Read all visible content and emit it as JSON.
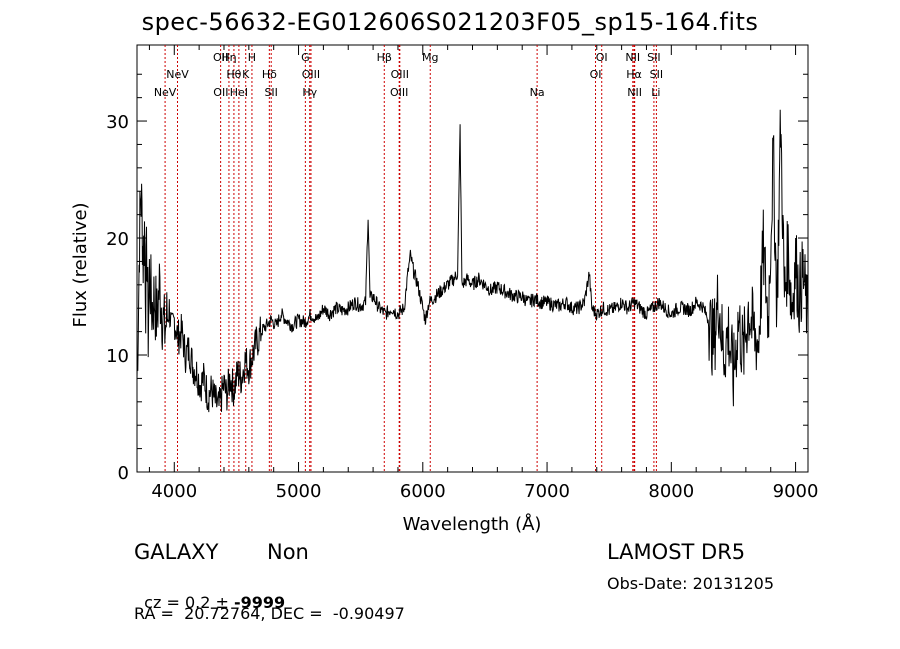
{
  "chart_data": {
    "type": "line",
    "title": "spec-56632-EG012606S021203F05_sp15-164.fits",
    "xlabel": "Wavelength (Å)",
    "ylabel": "Flux (relative)",
    "xlim": [
      3700,
      9100
    ],
    "ylim": [
      0,
      36.5
    ],
    "xticks": [
      4000,
      5000,
      6000,
      7000,
      8000,
      9000
    ],
    "yticks": [
      0,
      10,
      20,
      30
    ],
    "grid": false,
    "series_color": "#000000",
    "line_color": "#cc0000",
    "lines": [
      {
        "label": "NeV",
        "x": 3926,
        "row": 3
      },
      {
        "label": "NeV",
        "x": 4026,
        "row": 2
      },
      {
        "label": "OII",
        "x": 4373,
        "row": 1
      },
      {
        "label": "OII",
        "x": 4375,
        "row": 3
      },
      {
        "label": "Hη",
        "x": 4440,
        "row": 1
      },
      {
        "label": "Hθ",
        "x": 4480,
        "row": 2
      },
      {
        "label": "HeI",
        "x": 4520,
        "row": 3
      },
      {
        "label": "K",
        "x": 4575,
        "row": 2
      },
      {
        "label": "H",
        "x": 4625,
        "row": 1
      },
      {
        "label": "Hδ",
        "x": 4765,
        "row": 2
      },
      {
        "label": "SII",
        "x": 4780,
        "row": 3
      },
      {
        "label": "G",
        "x": 5055,
        "row": 1
      },
      {
        "label": "OIII",
        "x": 5100,
        "row": 2
      },
      {
        "label": "Hγ",
        "x": 5090,
        "row": 3
      },
      {
        "label": "Hβ",
        "x": 5690,
        "row": 1
      },
      {
        "label": "OIII",
        "x": 5815,
        "row": 2
      },
      {
        "label": "OIII",
        "x": 5810,
        "row": 3
      },
      {
        "label": "Mg",
        "x": 6060,
        "row": 1
      },
      {
        "label": "Na",
        "x": 6920,
        "row": 3
      },
      {
        "label": "OI",
        "x": 7440,
        "row": 1
      },
      {
        "label": "OI",
        "x": 7390,
        "row": 2
      },
      {
        "label": "NII",
        "x": 7690,
        "row": 1
      },
      {
        "label": "Hα",
        "x": 7700,
        "row": 2
      },
      {
        "label": "NII",
        "x": 7705,
        "row": 3
      },
      {
        "label": "SII",
        "x": 7860,
        "row": 1
      },
      {
        "label": "SII",
        "x": 7880,
        "row": 2
      },
      {
        "label": "Li",
        "x": 7875,
        "row": 3
      }
    ],
    "spectrum_points": [
      [
        3700,
        8
      ],
      [
        3710,
        13
      ],
      [
        3720,
        20
      ],
      [
        3730,
        24
      ],
      [
        3740,
        22
      ],
      [
        3750,
        18
      ],
      [
        3760,
        21
      ],
      [
        3770,
        15
      ],
      [
        3780,
        19
      ],
      [
        3790,
        12
      ],
      [
        3800,
        17
      ],
      [
        3820,
        14
      ],
      [
        3840,
        15
      ],
      [
        3860,
        13
      ],
      [
        3880,
        16
      ],
      [
        3900,
        14
      ],
      [
        3920,
        12
      ],
      [
        3940,
        13
      ],
      [
        3960,
        14
      ],
      [
        3980,
        12
      ],
      [
        4000,
        13
      ],
      [
        4030,
        11.5
      ],
      [
        4060,
        12
      ],
      [
        4090,
        10
      ],
      [
        4120,
        10.5
      ],
      [
        4150,
        9
      ],
      [
        4180,
        8.5
      ],
      [
        4210,
        7.5
      ],
      [
        4240,
        8
      ],
      [
        4270,
        6.5
      ],
      [
        4300,
        7
      ],
      [
        4330,
        6
      ],
      [
        4360,
        5.5
      ],
      [
        4380,
        6.5
      ],
      [
        4400,
        7.5
      ],
      [
        4420,
        6.5
      ],
      [
        4450,
        8
      ],
      [
        4480,
        7
      ],
      [
        4510,
        8.5
      ],
      [
        4540,
        8
      ],
      [
        4570,
        9.5
      ],
      [
        4600,
        9
      ],
      [
        4630,
        10
      ],
      [
        4660,
        11
      ],
      [
        4700,
        12
      ],
      [
        4740,
        12.5
      ],
      [
        4780,
        13
      ],
      [
        4820,
        12.5
      ],
      [
        4860,
        13.5
      ],
      [
        4900,
        13
      ],
      [
        4950,
        12.5
      ],
      [
        5000,
        13
      ],
      [
        5050,
        12.8
      ],
      [
        5100,
        13.5
      ],
      [
        5150,
        13
      ],
      [
        5200,
        14
      ],
      [
        5250,
        13.5
      ],
      [
        5300,
        14
      ],
      [
        5350,
        13.8
      ],
      [
        5400,
        14
      ],
      [
        5450,
        14.5
      ],
      [
        5500,
        14.2
      ],
      [
        5540,
        14.5
      ],
      [
        5560,
        22
      ],
      [
        5575,
        14.8
      ],
      [
        5600,
        15
      ],
      [
        5650,
        14
      ],
      [
        5700,
        13.5
      ],
      [
        5750,
        14
      ],
      [
        5800,
        13.5
      ],
      [
        5850,
        14
      ],
      [
        5880,
        17
      ],
      [
        5900,
        18.5
      ],
      [
        5930,
        17
      ],
      [
        5960,
        16
      ],
      [
        6000,
        14
      ],
      [
        6020,
        13
      ],
      [
        6050,
        14.5
      ],
      [
        6100,
        15
      ],
      [
        6150,
        15.5
      ],
      [
        6200,
        16
      ],
      [
        6250,
        16.5
      ],
      [
        6280,
        17
      ],
      [
        6300,
        29.5
      ],
      [
        6315,
        16
      ],
      [
        6360,
        16.5
      ],
      [
        6400,
        16
      ],
      [
        6450,
        16.5
      ],
      [
        6500,
        16
      ],
      [
        6550,
        15.5
      ],
      [
        6600,
        15.8
      ],
      [
        6650,
        15.5
      ],
      [
        6700,
        15.2
      ],
      [
        6750,
        15
      ],
      [
        6800,
        15
      ],
      [
        6850,
        14.5
      ],
      [
        6900,
        14.8
      ],
      [
        6950,
        14.5
      ],
      [
        7000,
        14.5
      ],
      [
        7050,
        14.3
      ],
      [
        7100,
        14.2
      ],
      [
        7150,
        14.5
      ],
      [
        7200,
        14
      ],
      [
        7250,
        14
      ],
      [
        7300,
        14.5
      ],
      [
        7340,
        17
      ],
      [
        7360,
        14
      ],
      [
        7400,
        13.5
      ],
      [
        7450,
        14
      ],
      [
        7500,
        13.8
      ],
      [
        7550,
        14
      ],
      [
        7600,
        14.5
      ],
      [
        7650,
        14
      ],
      [
        7700,
        14.5
      ],
      [
        7750,
        14
      ],
      [
        7800,
        13.5
      ],
      [
        7850,
        14
      ],
      [
        7900,
        14.5
      ],
      [
        7950,
        14
      ],
      [
        8000,
        13.5
      ],
      [
        8050,
        14
      ],
      [
        8100,
        14
      ],
      [
        8150,
        13.8
      ],
      [
        8200,
        14.5
      ],
      [
        8250,
        14.2
      ],
      [
        8300,
        13
      ],
      [
        8340,
        11
      ],
      [
        8380,
        15
      ],
      [
        8420,
        10
      ],
      [
        8460,
        12
      ],
      [
        8500,
        8
      ],
      [
        8540,
        13
      ],
      [
        8580,
        10
      ],
      [
        8620,
        14
      ],
      [
        8660,
        12
      ],
      [
        8700,
        11
      ],
      [
        8740,
        19
      ],
      [
        8780,
        13
      ],
      [
        8820,
        27
      ],
      [
        8850,
        14
      ],
      [
        8880,
        30
      ],
      [
        8910,
        15
      ],
      [
        8940,
        19
      ],
      [
        8970,
        14
      ],
      [
        9000,
        18
      ],
      [
        9030,
        15
      ],
      [
        9060,
        17
      ],
      [
        9100,
        13
      ]
    ]
  },
  "footer": {
    "object_class": "GALAXY",
    "subclass": "Non",
    "survey": "LAMOST DR5",
    "cz_prefix": "cz = 0.2 ± ",
    "cz_err": "-9999",
    "obs_date": "Obs-Date: 20131205",
    "radec": "RA =  20.72764, DEC =  -0.90497"
  }
}
